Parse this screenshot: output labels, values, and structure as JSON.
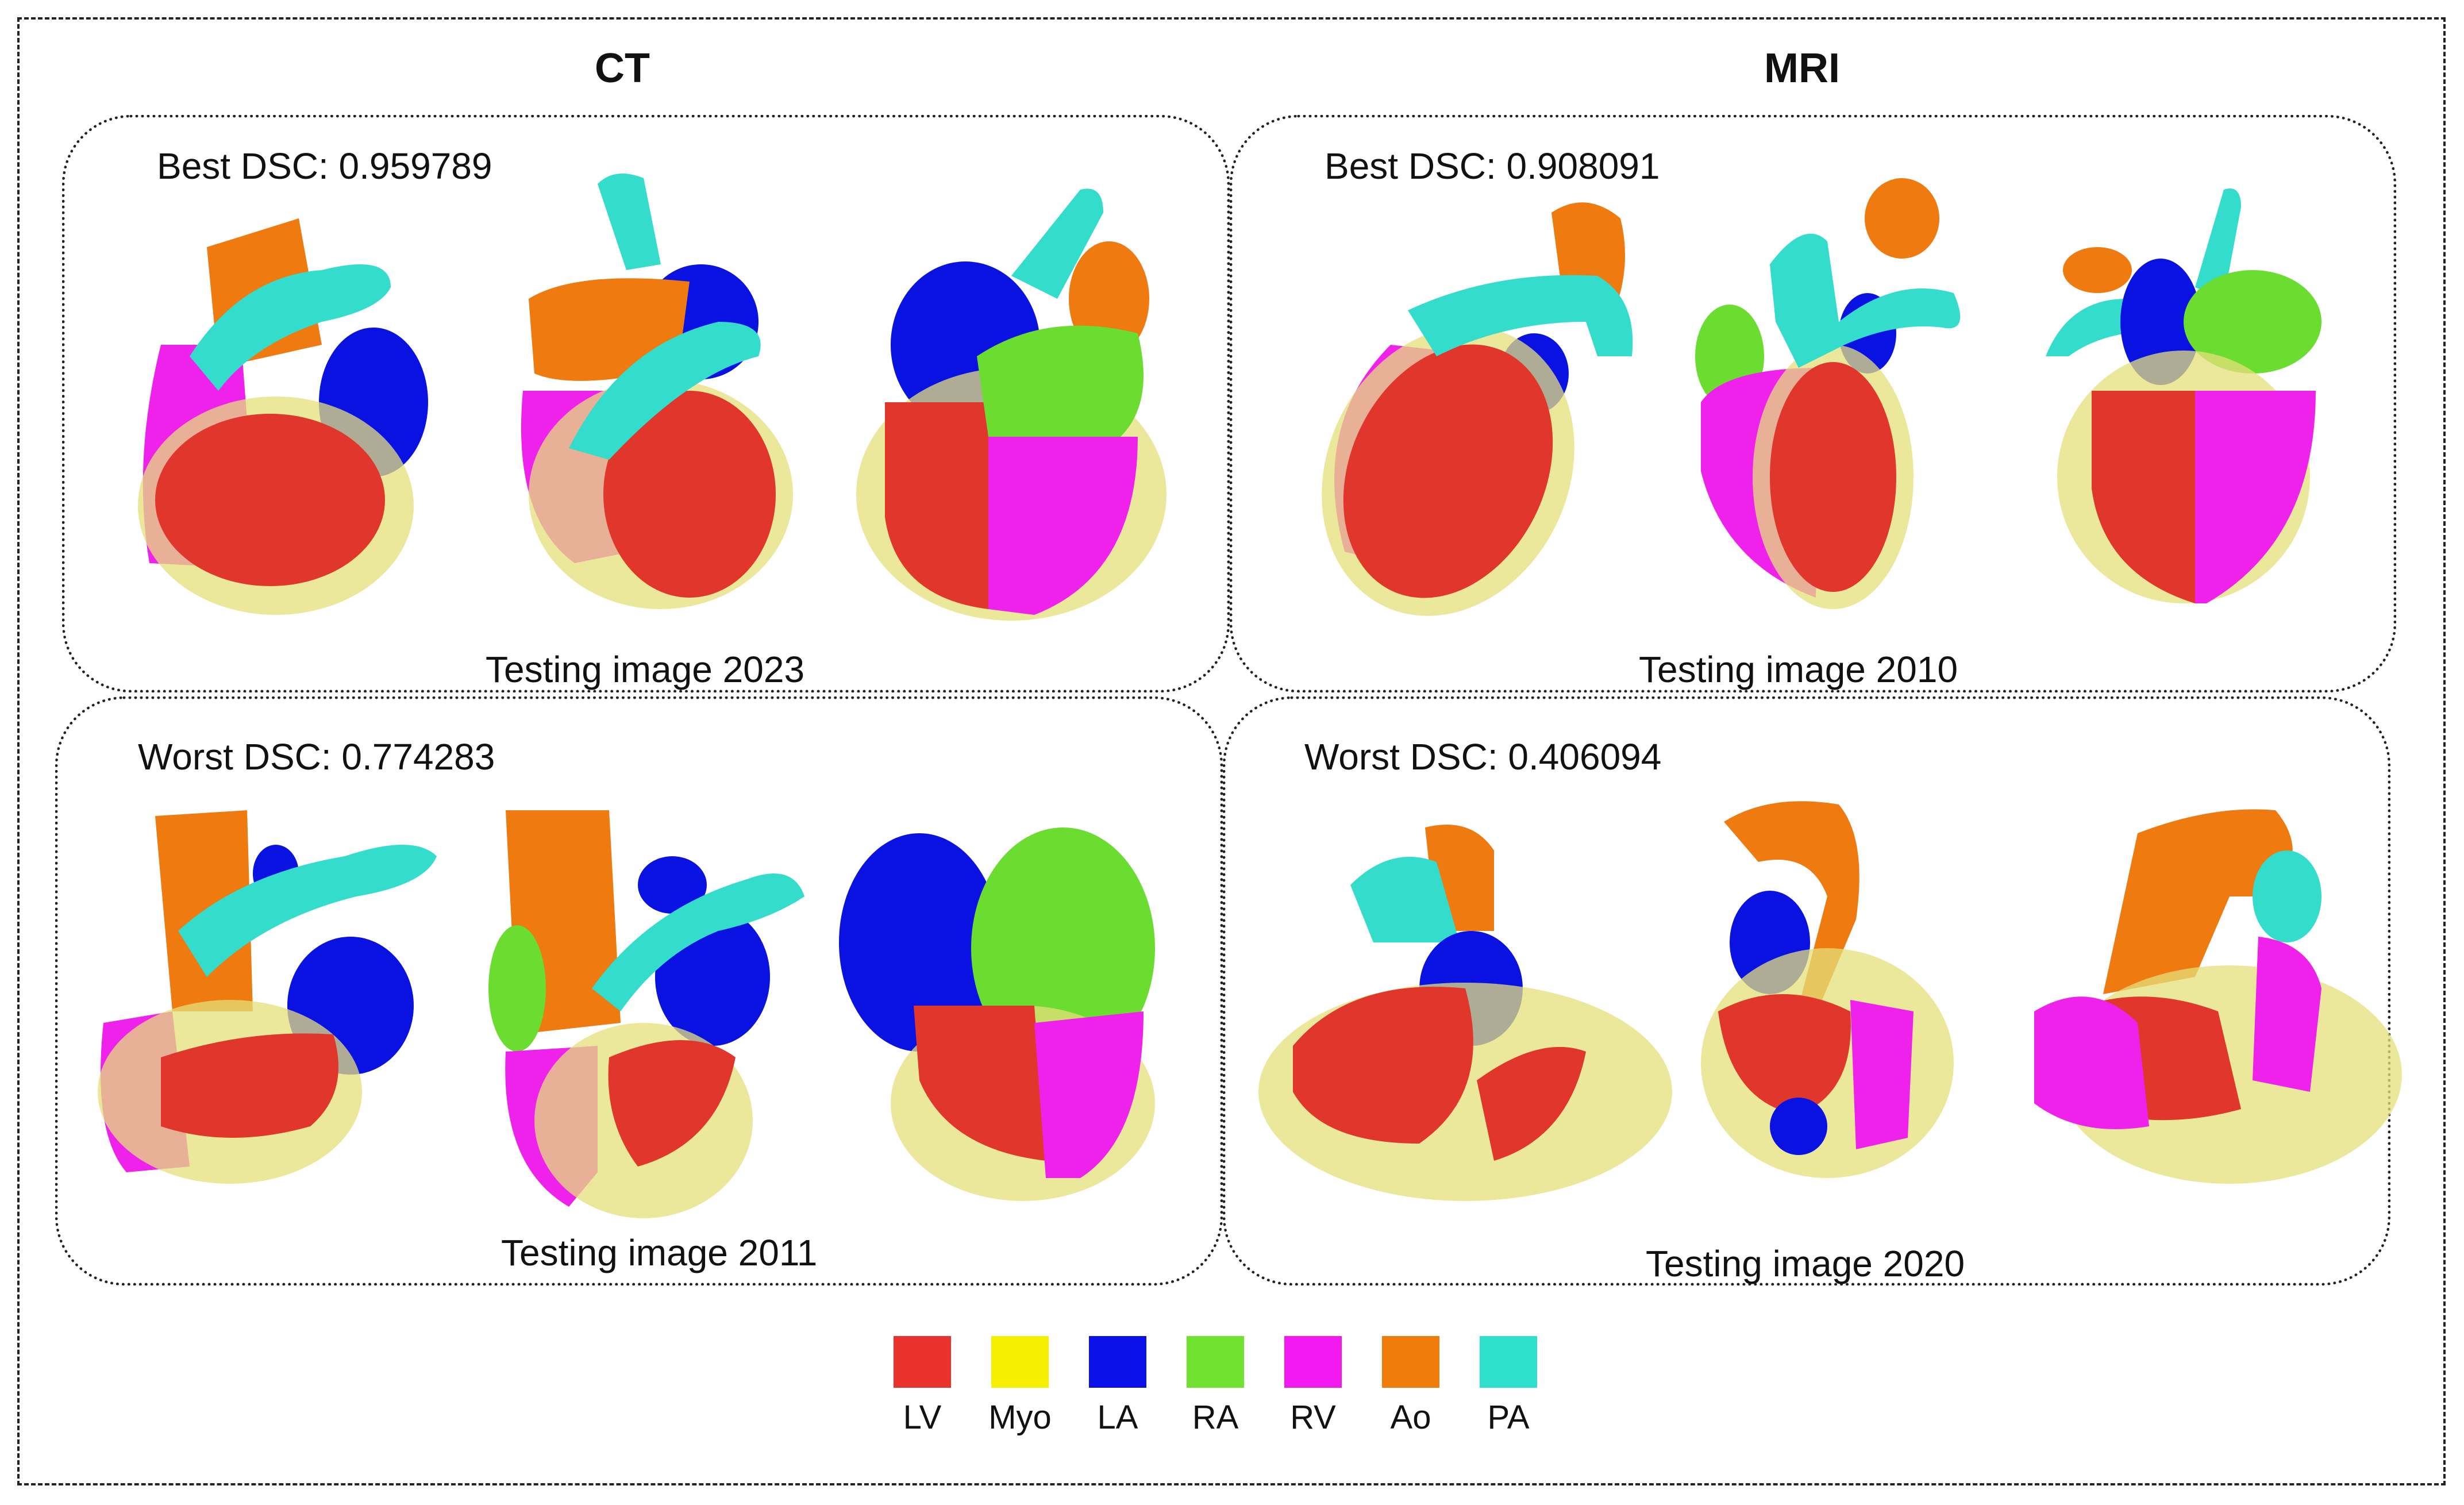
{
  "columns": {
    "left": "CT",
    "right": "MRI"
  },
  "panels": {
    "ct_best": {
      "dsc": "Best DSC: 0.959789",
      "caption": "Testing image 2023"
    },
    "mri_best": {
      "dsc": "Best DSC: 0.908091",
      "caption": "Testing image 2010"
    },
    "ct_worst": {
      "dsc": "Worst DSC: 0.774283",
      "caption": "Testing image 2011"
    },
    "mri_worst": {
      "dsc": "Worst DSC: 0.406094",
      "caption": "Testing image 2020"
    }
  },
  "legend": [
    {
      "label": "LV",
      "color": "#e8322b"
    },
    {
      "label": "Myo",
      "color": "#f5f000"
    },
    {
      "label": "LA",
      "color": "#0a10e8"
    },
    {
      "label": "RA",
      "color": "#6ee22e"
    },
    {
      "label": "RV",
      "color": "#f21af0"
    },
    {
      "label": "Ao",
      "color": "#f07c0c"
    },
    {
      "label": "PA",
      "color": "#2ee0cc"
    }
  ]
}
